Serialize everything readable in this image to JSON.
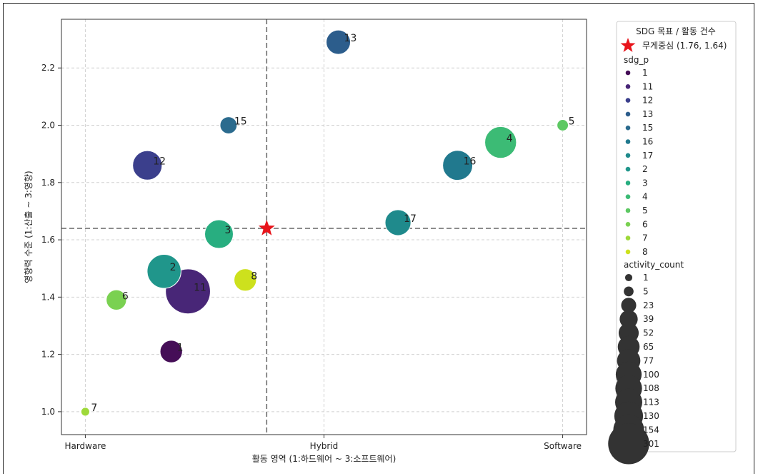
{
  "chart_data": {
    "type": "scatter",
    "xlabel": "활동 영역 (1:하드웨어 ~ 3:소프트웨어)",
    "ylabel": "영향력 수준 (1:산출 ~ 3:영향)",
    "xlim": [
      0.9,
      3.1
    ],
    "ylim": [
      0.92,
      2.37
    ],
    "xticks": [
      {
        "value": 1,
        "label": "Hardware"
      },
      {
        "value": 2,
        "label": "Hybrid"
      },
      {
        "value": 3,
        "label": "Software"
      }
    ],
    "yticks": [
      1.0,
      1.2,
      1.4,
      1.6,
      1.8,
      2.0,
      2.2
    ],
    "grid": true,
    "centroid": {
      "x": 1.76,
      "y": 1.64,
      "label": "무게중심 (1.76, 1.64)",
      "color": "#e8141b"
    },
    "points": [
      {
        "sdg": "1",
        "x": 1.36,
        "y": 1.21,
        "activity_count": 52,
        "color": "#450e57"
      },
      {
        "sdg": "11",
        "x": 1.43,
        "y": 1.42,
        "activity_count": 301,
        "color": "#482677"
      },
      {
        "sdg": "12",
        "x": 1.26,
        "y": 1.86,
        "activity_count": 108,
        "color": "#3b3f8c"
      },
      {
        "sdg": "13",
        "x": 2.06,
        "y": 2.29,
        "activity_count": 65,
        "color": "#2c5d8c"
      },
      {
        "sdg": "15",
        "x": 1.6,
        "y": 2.0,
        "activity_count": 23,
        "color": "#2b6b8e"
      },
      {
        "sdg": "16",
        "x": 2.56,
        "y": 1.86,
        "activity_count": 113,
        "color": "#21798e"
      },
      {
        "sdg": "17",
        "x": 2.31,
        "y": 1.66,
        "activity_count": 77,
        "color": "#1f8a8c"
      },
      {
        "sdg": "2",
        "x": 1.33,
        "y": 1.49,
        "activity_count": 154,
        "color": "#20968b"
      },
      {
        "sdg": "3",
        "x": 1.56,
        "y": 1.62,
        "activity_count": 100,
        "color": "#28ae80"
      },
      {
        "sdg": "4",
        "x": 2.74,
        "y": 1.94,
        "activity_count": 130,
        "color": "#3cbb75"
      },
      {
        "sdg": "5",
        "x": 3.0,
        "y": 2.0,
        "activity_count": 5,
        "color": "#5dc863"
      },
      {
        "sdg": "6",
        "x": 1.13,
        "y": 1.39,
        "activity_count": 39,
        "color": "#7ad151"
      },
      {
        "sdg": "7",
        "x": 1.0,
        "y": 1.0,
        "activity_count": 1,
        "color": "#9ed93a"
      },
      {
        "sdg": "8",
        "x": 1.67,
        "y": 1.46,
        "activity_count": 52,
        "color": "#cde11d"
      }
    ],
    "legend": {
      "placement": "outside-right",
      "title": "SDG 목표 / 활동 건수",
      "hue_title": "sdg_p",
      "hue_entries": [
        {
          "label": "1",
          "color": "#450e57"
        },
        {
          "label": "11",
          "color": "#482677"
        },
        {
          "label": "12",
          "color": "#3b3f8c"
        },
        {
          "label": "13",
          "color": "#2c5d8c"
        },
        {
          "label": "15",
          "color": "#2b6b8e"
        },
        {
          "label": "16",
          "color": "#21798e"
        },
        {
          "label": "17",
          "color": "#1f8a8c"
        },
        {
          "label": "2",
          "color": "#20968b"
        },
        {
          "label": "3",
          "color": "#28ae80"
        },
        {
          "label": "4",
          "color": "#3cbb75"
        },
        {
          "label": "5",
          "color": "#5dc863"
        },
        {
          "label": "6",
          "color": "#7ad151"
        },
        {
          "label": "7",
          "color": "#9ed93a"
        },
        {
          "label": "8",
          "color": "#cde11d"
        }
      ],
      "size_title": "activity_count",
      "size_entries": [
        1,
        5,
        23,
        39,
        52,
        65,
        77,
        100,
        108,
        113,
        130,
        154,
        301
      ],
      "size_color": "#333333"
    }
  }
}
